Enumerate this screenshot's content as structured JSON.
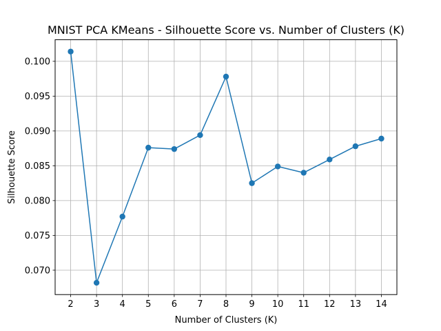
{
  "chart_data": {
    "type": "line",
    "title": "MNIST PCA KMeans - Silhouette Score vs. Number of Clusters (K)",
    "xlabel": "Number of Clusters (K)",
    "ylabel": "Silhouette Score",
    "x": [
      2,
      3,
      4,
      5,
      6,
      7,
      8,
      9,
      10,
      11,
      12,
      13,
      14
    ],
    "series": [
      {
        "values": [
          0.1014,
          0.0682,
          0.0777,
          0.0876,
          0.0874,
          0.0894,
          0.0978,
          0.0825,
          0.0849,
          0.084,
          0.0859,
          0.0878,
          0.0889
        ]
      }
    ],
    "xticks": [
      "2",
      "3",
      "4",
      "5",
      "6",
      "7",
      "8",
      "9",
      "10",
      "11",
      "12",
      "13",
      "14"
    ],
    "yticks": [
      "0.070",
      "0.075",
      "0.080",
      "0.085",
      "0.090",
      "0.095",
      "0.100"
    ],
    "xlim": [
      1.4,
      14.6
    ],
    "ylim": [
      0.0665,
      0.1031
    ],
    "grid": true,
    "marker": "circle",
    "color": "#1f77b4"
  }
}
